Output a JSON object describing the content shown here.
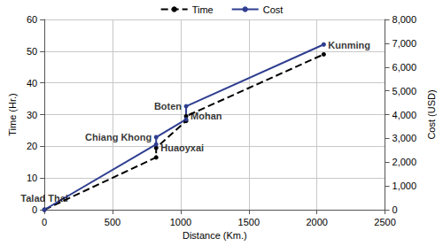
{
  "chart_data": {
    "type": "line",
    "x_label": "Distance (Km.)",
    "y_label": "Time (Hr.)",
    "y2_label": "Cost (USD)",
    "x": [
      0,
      820,
      820,
      1040,
      1040,
      2050
    ],
    "series": [
      {
        "name": "Time",
        "color": "#000000",
        "line_style": "dashed",
        "marker": "circle",
        "values": [
          0,
          16.5,
          19.5,
          28,
          29.5,
          49
        ]
      },
      {
        "name": "Cost",
        "color": "#2f3e91",
        "line_style": "solid",
        "marker": "circle",
        "axis": "y2",
        "values": [
          0,
          2750,
          3050,
          3800,
          4350,
          6950
        ]
      }
    ],
    "xlim": [
      0,
      2500
    ],
    "xticks": [
      0,
      500,
      1000,
      1500,
      2000,
      2500
    ],
    "ylim": [
      0,
      60
    ],
    "yticks": [
      0,
      10,
      20,
      30,
      40,
      50,
      60
    ],
    "y2lim": [
      0,
      8000
    ],
    "y2ticks": [
      0,
      {
        "value": 1000,
        "label": "1,000"
      },
      {
        "value": 2000,
        "label": "2,000"
      },
      {
        "value": 3000,
        "label": "3,000"
      },
      {
        "value": 4000,
        "label": "4,000"
      },
      {
        "value": 5000,
        "label": "5,000"
      },
      {
        "value": 6000,
        "label": "6,000"
      },
      {
        "value": 7000,
        "label": "7,000"
      },
      {
        "value": 8000,
        "label": "8,000"
      }
    ],
    "annotations": [
      {
        "text": "Talad Thai",
        "x": 0,
        "y": 0
      },
      {
        "text": "Chiang Khong",
        "x": 820,
        "y": 23
      },
      {
        "text": "Huaoyxai",
        "x": 820,
        "y": 19.5
      },
      {
        "text": "Boten",
        "x": 1040,
        "y": 32.6
      },
      {
        "text": "Mohan",
        "x": 1040,
        "y": 29.5
      },
      {
        "text": "Kunming",
        "x": 2050,
        "y": 52
      }
    ],
    "grid": true,
    "legend": "top"
  }
}
